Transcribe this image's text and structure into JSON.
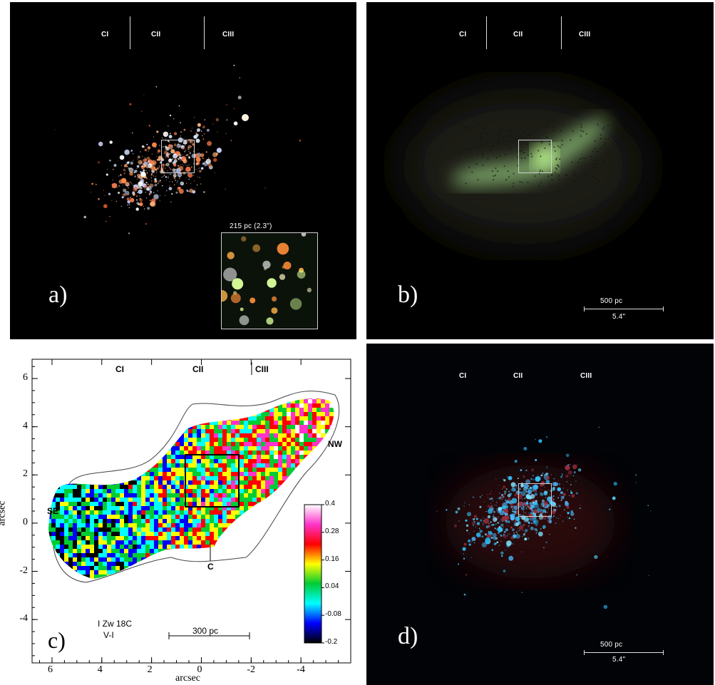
{
  "cluster_labels": [
    "CI",
    "CII",
    "CIII"
  ],
  "panel_a": {
    "letter": "a)",
    "inset_label": "215 pc (2.3\")"
  },
  "panel_b": {
    "letter": "b)",
    "scale_distance": "500 pc",
    "scale_angle": "5.4\""
  },
  "panel_c": {
    "letter": "c)",
    "xlabel": "arcsec",
    "ylabel": "arcsec",
    "x_ticks": [
      "6",
      "4",
      "2",
      "0",
      "-2",
      "-4"
    ],
    "y_ticks": [
      "6",
      "4",
      "2",
      "0",
      "-2",
      "-4"
    ],
    "region_labels": {
      "se": "SE",
      "nw": "NW",
      "c": "C"
    },
    "object_name": "I Zw 18C",
    "color_index": "V-I",
    "scale_distance": "300 pc",
    "colorbar_ticks": [
      "0.4",
      "0.28",
      "0.16",
      "0.04",
      "-0.08",
      "-0.2"
    ],
    "colorbar_colors": [
      "#ffffff",
      "#ff33cc",
      "#ff0000",
      "#ffff00",
      "#00cc33",
      "#00ffff",
      "#0000ff",
      "#000000"
    ]
  },
  "panel_d": {
    "letter": "d)",
    "scale_distance": "500 pc",
    "scale_angle": "5.4\""
  }
}
